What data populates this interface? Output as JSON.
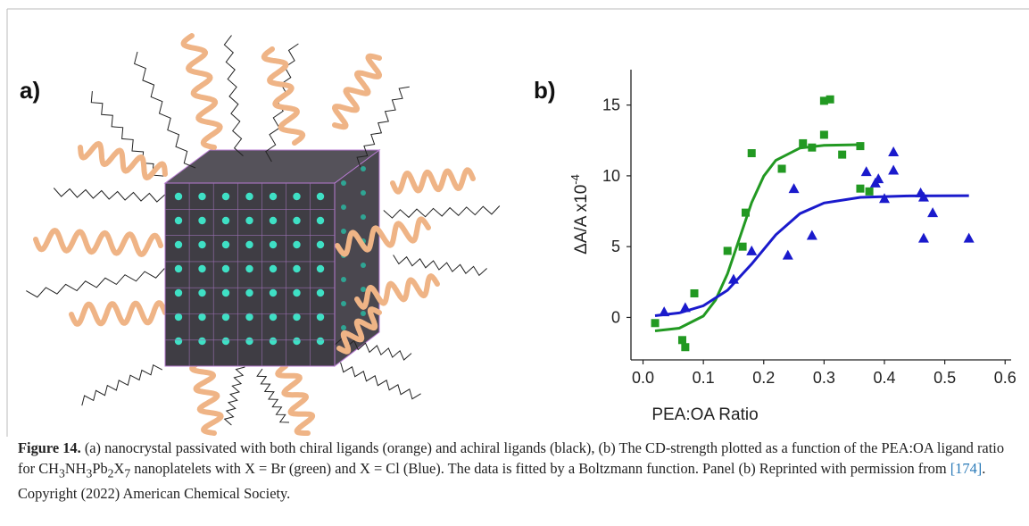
{
  "panels": {
    "a": {
      "label": "a)"
    },
    "b": {
      "label": "b)"
    }
  },
  "chart_data": {
    "type": "scatter",
    "x_label": "PEA:OA Ratio",
    "y_label": "ΔA/A x10",
    "y_label_exponent": "-4",
    "xlim": [
      -0.02,
      0.61
    ],
    "ylim": [
      -3,
      17.5
    ],
    "xticks": [
      {
        "value": 0,
        "label": "0.0"
      },
      0.1,
      0.2,
      0.3,
      0.4,
      0.5,
      0.6
    ],
    "yticks": [
      0,
      5,
      10,
      15
    ],
    "series": [
      {
        "color": "#229922",
        "marker": "square",
        "x": [
          0.02,
          0.065,
          0.07,
          0.085,
          0.14,
          0.165,
          0.17,
          0.18,
          0.23,
          0.265,
          0.28,
          0.3,
          0.31,
          0.3,
          0.33,
          0.36,
          0.36,
          0.375
        ],
        "values": [
          -0.4,
          -1.6,
          -2.1,
          1.7,
          4.7,
          5.0,
          7.4,
          11.6,
          10.5,
          12.3,
          12.0,
          15.3,
          15.4,
          12.9,
          11.5,
          12.1,
          9.1,
          8.9
        ]
      },
      {
        "color": "#1a1acc",
        "marker": "triangle",
        "x": [
          0.035,
          0.07,
          0.15,
          0.18,
          0.24,
          0.25,
          0.28,
          0.37,
          0.385,
          0.39,
          0.4,
          0.415,
          0.415,
          0.46,
          0.465,
          0.465,
          0.48,
          0.54
        ],
        "values": [
          0.4,
          0.7,
          2.7,
          4.7,
          4.4,
          9.1,
          5.8,
          10.3,
          9.5,
          9.8,
          8.4,
          10.4,
          11.7,
          8.8,
          8.5,
          5.6,
          7.4,
          5.6
        ]
      }
    ],
    "fits": [
      {
        "color": "#229922",
        "x": [
          0.02,
          0.06,
          0.1,
          0.12,
          0.14,
          0.16,
          0.18,
          0.2,
          0.22,
          0.26,
          0.3,
          0.36
        ],
        "values": [
          -0.95,
          -0.76,
          0.1,
          1.22,
          3.09,
          5.6,
          8.11,
          9.98,
          11.1,
          11.96,
          12.15,
          12.2
        ]
      },
      {
        "color": "#1a1acc",
        "x": [
          0.02,
          0.06,
          0.1,
          0.14,
          0.18,
          0.22,
          0.26,
          0.3,
          0.36,
          0.44,
          0.54
        ],
        "values": [
          0.12,
          0.32,
          0.82,
          1.92,
          3.77,
          5.84,
          7.33,
          8.08,
          8.48,
          8.58,
          8.6
        ]
      }
    ]
  },
  "caption": {
    "label": "Figure 14.",
    "text_1": " (a) nanocrystal passivated with both chiral ligands (orange) and achiral ligands (black), (b) The CD-strength plotted as a function of the PEA:OA ligand ratio for ",
    "formula": [
      "CH",
      "3",
      "NH",
      "3",
      "Pb",
      "2",
      "X",
      "7"
    ],
    "text_2": " nanoplatelets with X = Br (green) and X = Cl (Blue). The data is fitted by a Boltzmann function. Panel (b) Reprinted with permission from ",
    "reference": "[174]",
    "text_3": ". Copyright (2022) American Chemical Society."
  }
}
